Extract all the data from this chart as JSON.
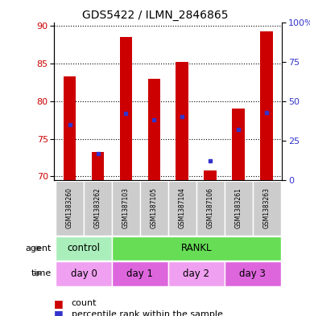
{
  "title": "GDS5422 / ILMN_2846865",
  "samples": [
    "GSM1383260",
    "GSM1383262",
    "GSM1387103",
    "GSM1387105",
    "GSM1387104",
    "GSM1387106",
    "GSM1383261",
    "GSM1383263"
  ],
  "counts": [
    83.3,
    73.2,
    88.5,
    83.0,
    85.2,
    70.8,
    79.0,
    89.3
  ],
  "percentile_ranks": [
    35,
    17,
    42,
    38,
    40,
    12,
    32,
    43
  ],
  "ylim_left": [
    69.5,
    90.5
  ],
  "ylim_right": [
    0,
    100
  ],
  "yticks_left": [
    70,
    75,
    80,
    85,
    90
  ],
  "yticks_right": [
    0,
    25,
    50,
    75,
    100
  ],
  "bar_color": "#cc0000",
  "dot_color": "#3333cc",
  "bar_width": 0.45,
  "bar_bottom": 69.5,
  "agent_control_color": "#aaeebb",
  "agent_rankl_color": "#66dd55",
  "time_day0_color": "#f0a0f0",
  "time_day1_color": "#dd66dd",
  "time_day2_color": "#f0a0f0",
  "time_day3_color": "#dd66dd",
  "sample_box_color": "#cccccc",
  "left_tick_color": "#cc0000",
  "right_tick_color": "#3333cc",
  "legend_count_color": "#cc0000",
  "legend_dot_color": "#3333cc"
}
